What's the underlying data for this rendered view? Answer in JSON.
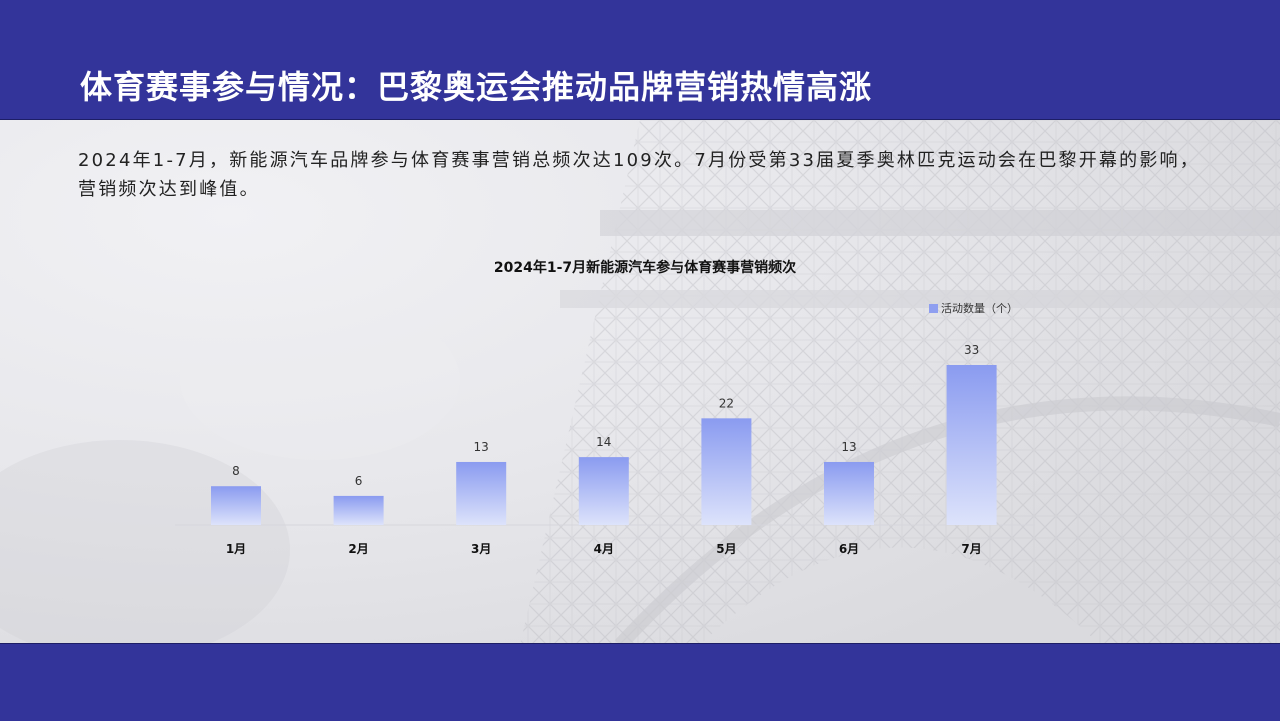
{
  "header": {
    "title": "体育赛事参与情况：巴黎奥运会推动品牌营销热情高涨"
  },
  "description": "2024年1-7月，新能源汽车品牌参与体育赛事营销总频次达109次。7月份受第33届夏季奥林匹克运动会在巴黎开幕的影响，营销频次达到峰值。",
  "colors": {
    "bar_top": "#8a9bf0",
    "bar_bottom": "#dde3fb",
    "header": "#33349a"
  },
  "chart_data": {
    "type": "bar",
    "title": "2024年1-7月新能源汽车参与体育赛事营销频次",
    "categories": [
      "1月",
      "2月",
      "3月",
      "4月",
      "5月",
      "6月",
      "7月"
    ],
    "series": [
      {
        "name": "活动数量（个）",
        "values": [
          8,
          6,
          13,
          14,
          22,
          13,
          33
        ]
      }
    ],
    "legend_position": "top-right",
    "grid": false,
    "ylim": [
      0,
      33
    ]
  }
}
